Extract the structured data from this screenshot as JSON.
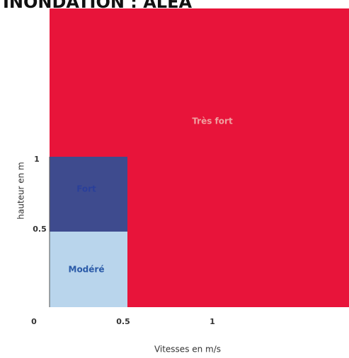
{
  "title": "INONDATION : ALEA",
  "zones": [
    {
      "label": "Très fort"
    },
    {
      "label": "Fort"
    },
    {
      "label": "Modéré"
    }
  ],
  "y_axis": {
    "label": "hauteur en m",
    "ticks": [
      "1",
      "0.5"
    ]
  },
  "x_axis": {
    "label": "Vitesses en m/s",
    "ticks": [
      "0",
      "0.5",
      "1"
    ]
  }
}
